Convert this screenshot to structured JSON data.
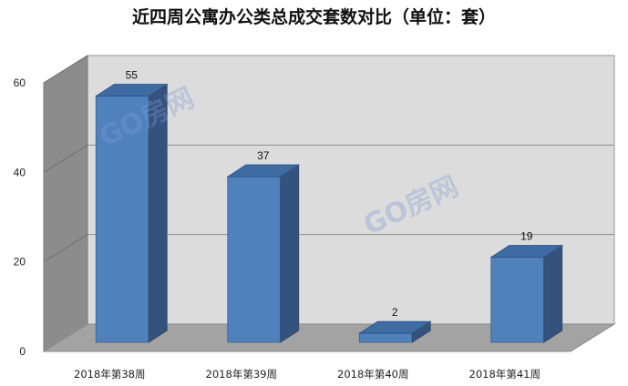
{
  "chart_data": {
    "type": "bar",
    "title": "近四周公寓办公类总成交套数对比（单位：套）",
    "categories": [
      "2018年第38周",
      "2018年第39周",
      "2018年第40周",
      "2018年第41周"
    ],
    "values": [
      55,
      37,
      2,
      19
    ],
    "yticks": [
      "0",
      "20",
      "40",
      "60"
    ],
    "ylim": [
      0,
      60
    ],
    "xlabel": "",
    "ylabel": "",
    "grid": true,
    "legend": "none",
    "bar_color": "#4f81bd",
    "watermark": "GO房网"
  }
}
